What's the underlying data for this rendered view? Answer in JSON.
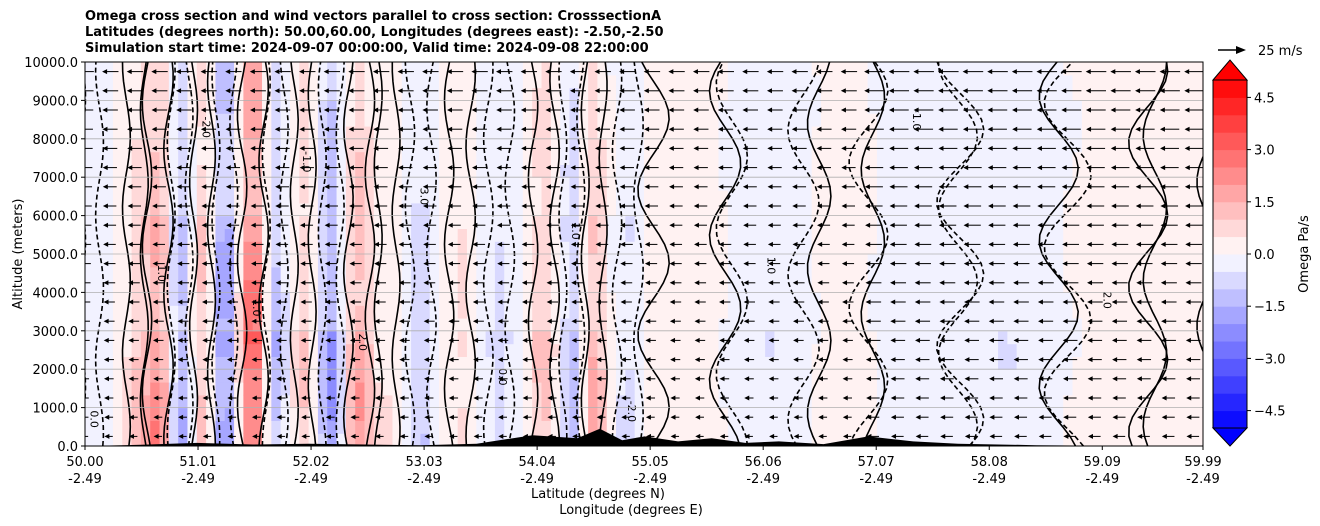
{
  "chart_data": {
    "type": "heatmap",
    "title_lines": [
      "Omega cross section and wind vectors parallel to cross section: CrosssectionA",
      "Latitudes (degrees north): 50.00,60.00, Longitudes (degrees east): -2.50,-2.50",
      "Simulation start time: 2024-09-07 00:00:00, Valid time: 2024-09-08 22:00:00"
    ],
    "ylabel": "Altitude (meters)",
    "xlabel_lat": "Latitude (degrees N)",
    "xlabel_lon": "Longitude (degrees E)",
    "xlim": [
      50.0,
      59.99
    ],
    "ylim": [
      0,
      10000
    ],
    "grid": "horizontal",
    "x_ticks": [
      {
        "lat": "50.00",
        "lon": "-2.49",
        "v": 50.0
      },
      {
        "lat": "51.01",
        "lon": "-2.49",
        "v": 51.01
      },
      {
        "lat": "52.02",
        "lon": "-2.49",
        "v": 52.02
      },
      {
        "lat": "53.03",
        "lon": "-2.49",
        "v": 53.03
      },
      {
        "lat": "54.04",
        "lon": "-2.49",
        "v": 54.04
      },
      {
        "lat": "55.05",
        "lon": "-2.49",
        "v": 55.05
      },
      {
        "lat": "56.06",
        "lon": "-2.49",
        "v": 56.06
      },
      {
        "lat": "57.07",
        "lon": "-2.49",
        "v": 57.07
      },
      {
        "lat": "58.08",
        "lon": "-2.49",
        "v": 58.08
      },
      {
        "lat": "59.09",
        "lon": "-2.49",
        "v": 59.09
      },
      {
        "lat": "59.99",
        "lon": "-2.49",
        "v": 59.99
      }
    ],
    "y_ticks": [
      {
        "label": "0.0",
        "v": 0
      },
      {
        "label": "1000.0",
        "v": 1000
      },
      {
        "label": "2000.0",
        "v": 2000
      },
      {
        "label": "3000.0",
        "v": 3000
      },
      {
        "label": "4000.0",
        "v": 4000
      },
      {
        "label": "5000.0",
        "v": 5000
      },
      {
        "label": "6000.0",
        "v": 6000
      },
      {
        "label": "7000.0",
        "v": 7000
      },
      {
        "label": "8000.0",
        "v": 8000
      },
      {
        "label": "9000.0",
        "v": 9000
      },
      {
        "label": "10000.0",
        "v": 10000
      }
    ],
    "colorbar": {
      "label": "Omega Pa/s",
      "range": [
        -5.0,
        5.0
      ],
      "extend": "both",
      "ticks": [
        {
          "label": "4.5",
          "v": 4.5
        },
        {
          "label": "3.0",
          "v": 3.0
        },
        {
          "label": "1.5",
          "v": 1.5
        },
        {
          "label": "0.0",
          "v": 0.0
        },
        {
          "label": "−1.5",
          "v": -1.5
        },
        {
          "label": "−3.0",
          "v": -3.0
        },
        {
          "label": "−4.5",
          "v": -4.5
        }
      ],
      "levels": [
        -5.0,
        -4.5,
        -4.0,
        -3.5,
        -3.0,
        -2.5,
        -2.0,
        -1.5,
        -1.0,
        -0.5,
        0.0,
        0.5,
        1.0,
        1.5,
        2.0,
        2.5,
        3.0,
        3.5,
        4.0,
        4.5,
        5.0
      ],
      "max_color": "#ff0000",
      "min_color": "#0000ff",
      "mid_color": "#ffffff"
    },
    "quiver_key": {
      "label": "25 m/s",
      "speed": 25
    },
    "bands": [
      {
        "lat": 50.05,
        "w": 0.1,
        "v": -0.3
      },
      {
        "lat": 50.45,
        "w": 0.1,
        "v": 0.8
      },
      {
        "lat": 50.65,
        "w": 0.12,
        "v": 2.0
      },
      {
        "lat": 50.85,
        "w": 0.1,
        "v": -1.6
      },
      {
        "lat": 51.05,
        "w": 0.1,
        "v": 1.2
      },
      {
        "lat": 51.25,
        "w": 0.1,
        "v": -2.2
      },
      {
        "lat": 51.5,
        "w": 0.12,
        "v": 3.0
      },
      {
        "lat": 51.7,
        "w": 0.1,
        "v": -1.4
      },
      {
        "lat": 51.95,
        "w": 0.1,
        "v": 1.0
      },
      {
        "lat": 52.2,
        "w": 0.1,
        "v": -1.8
      },
      {
        "lat": 52.45,
        "w": 0.12,
        "v": 1.6
      },
      {
        "lat": 52.7,
        "w": 0.1,
        "v": 0.4
      },
      {
        "lat": 53.0,
        "w": 0.12,
        "v": -0.9
      },
      {
        "lat": 53.35,
        "w": 0.12,
        "v": 0.6
      },
      {
        "lat": 53.7,
        "w": 0.12,
        "v": -0.7
      },
      {
        "lat": 54.1,
        "w": 0.12,
        "v": 1.1
      },
      {
        "lat": 54.35,
        "w": 0.1,
        "v": -1.2
      },
      {
        "lat": 54.55,
        "w": 0.1,
        "v": 1.4
      },
      {
        "lat": 54.85,
        "w": 0.12,
        "v": -0.6
      },
      {
        "lat": 55.4,
        "w": 0.4,
        "v": 0.3
      },
      {
        "lat": 56.1,
        "w": 0.4,
        "v": -0.4
      },
      {
        "lat": 56.8,
        "w": 0.3,
        "v": 0.4
      },
      {
        "lat": 57.4,
        "w": 0.5,
        "v": -0.3
      },
      {
        "lat": 58.3,
        "w": 0.6,
        "v": -0.4
      },
      {
        "lat": 59.1,
        "w": 0.5,
        "v": 0.3
      },
      {
        "lat": 59.8,
        "w": 0.3,
        "v": 0.2
      }
    ],
    "contour_labels": [
      "0.0",
      "-1.0",
      "1.0",
      "2.0",
      "-2.0",
      "3.0",
      "1.0"
    ],
    "terrain_lat": [
      50.0,
      50.5,
      51.0,
      51.5,
      52.0,
      52.5,
      53.0,
      53.5,
      54.0,
      54.4,
      54.6,
      54.8,
      55.0,
      55.3,
      55.6,
      55.9,
      56.2,
      56.6,
      57.0,
      57.4,
      57.8,
      58.5,
      59.0,
      59.99
    ],
    "terrain_alt": [
      0,
      30,
      80,
      40,
      60,
      40,
      20,
      60,
      280,
      200,
      450,
      150,
      250,
      120,
      200,
      80,
      120,
      50,
      250,
      120,
      60,
      20,
      10,
      0
    ]
  }
}
